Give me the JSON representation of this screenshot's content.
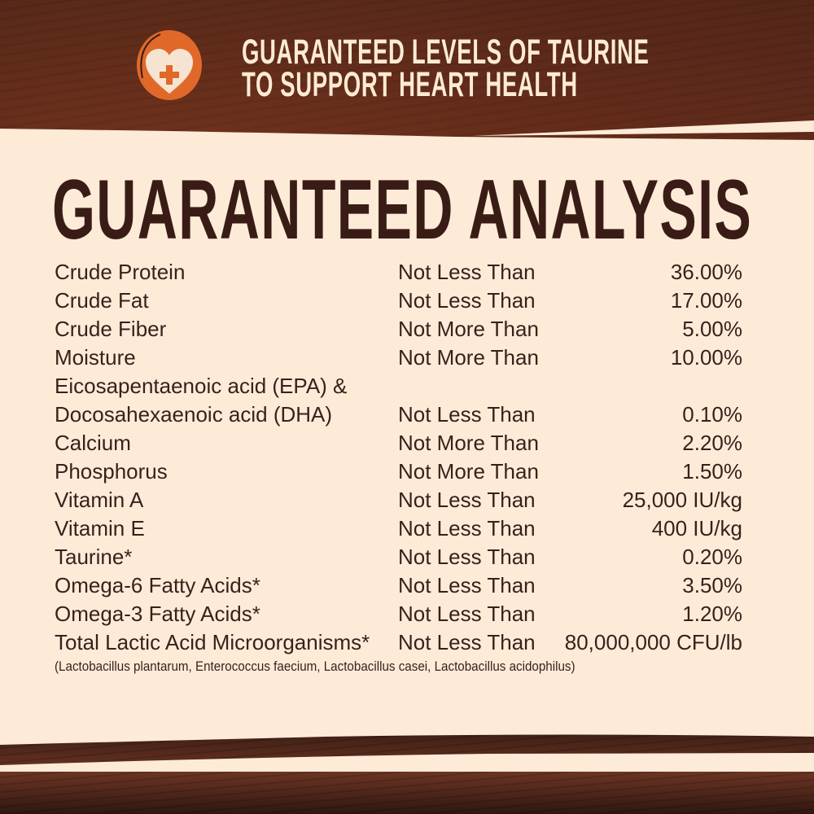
{
  "banner": {
    "line1": "GUARANTEED LEVELS OF TAURINE",
    "line2": "TO SUPPORT HEART HEALTH",
    "icon": "heart-plus-icon"
  },
  "title": "GUARANTEED ANALYSIS",
  "rows": [
    {
      "name": "Crude Protein",
      "qualifier": "Not Less Than",
      "value": "36.00%"
    },
    {
      "name": "Crude Fat",
      "qualifier": "Not Less Than",
      "value": "17.00%"
    },
    {
      "name": "Crude Fiber",
      "qualifier": "Not More Than",
      "value": "5.00%"
    },
    {
      "name": "Moisture",
      "qualifier": "Not More Than",
      "value": "10.00%"
    },
    {
      "name": "Eicosapentaenoic acid (EPA) &",
      "qualifier": "",
      "value": ""
    },
    {
      "name": "Docosahexaenoic acid (DHA)",
      "qualifier": "Not Less Than",
      "value": "0.10%"
    },
    {
      "name": "Calcium",
      "qualifier": "Not More Than",
      "value": "2.20%"
    },
    {
      "name": "Phosphorus",
      "qualifier": "Not More Than",
      "value": "1.50%"
    },
    {
      "name": "Vitamin A",
      "qualifier": "Not Less Than",
      "value": "25,000 IU/kg"
    },
    {
      "name": "Vitamin E",
      "qualifier": "Not Less Than",
      "value": "400 IU/kg"
    },
    {
      "name": "Taurine*",
      "qualifier": "Not Less Than",
      "value": "0.20%"
    },
    {
      "name": "Omega-6 Fatty Acids*",
      "qualifier": "Not Less Than",
      "value": "3.50%"
    },
    {
      "name": "Omega-3 Fatty Acids*",
      "qualifier": "Not Less Than",
      "value": "1.20%"
    },
    {
      "name": "Total Lactic Acid Microorganisms*",
      "qualifier": "Not Less Than",
      "value": "80,000,000 CFU/lb"
    }
  ],
  "footnote": "(Lactobacillus plantarum, Enterococcus faecium, Lactobacillus casei, Lactobacillus acidophilus)",
  "colors": {
    "cream": "#fdebd8",
    "text": "#3a1f1a",
    "accent": "#e0692a",
    "wood": "#5a2a1c"
  }
}
